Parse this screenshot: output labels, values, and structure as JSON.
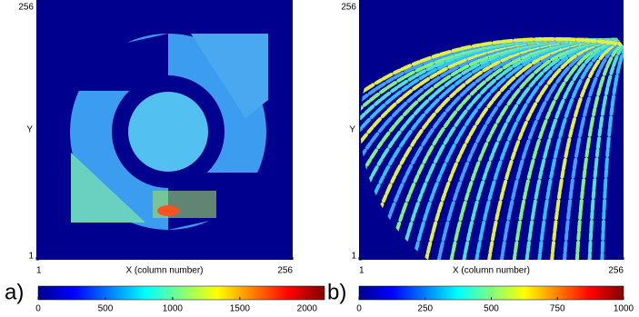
{
  "panels": [
    {
      "label": "a)",
      "x_label": "X (column number)",
      "y_label": "Y",
      "xlim": [
        1,
        256
      ],
      "xticks": [
        1,
        256
      ],
      "ylim": [
        1,
        256
      ],
      "yticks": [
        256,
        1
      ],
      "colorbar": {
        "lim": [
          0,
          2130
        ],
        "ticks": [
          0,
          500,
          1000,
          1500,
          2000
        ]
      }
    },
    {
      "label": "b)",
      "x_label": "X (column number)",
      "y_label": "Y",
      "xlim": [
        1,
        256
      ],
      "xticks": [
        1,
        256
      ],
      "ylim": [
        1,
        256
      ],
      "yticks": [
        256,
        1
      ],
      "colorbar": {
        "lim": [
          0,
          1000
        ],
        "ticks": [
          0,
          250,
          500,
          750,
          1000
        ]
      }
    }
  ]
}
